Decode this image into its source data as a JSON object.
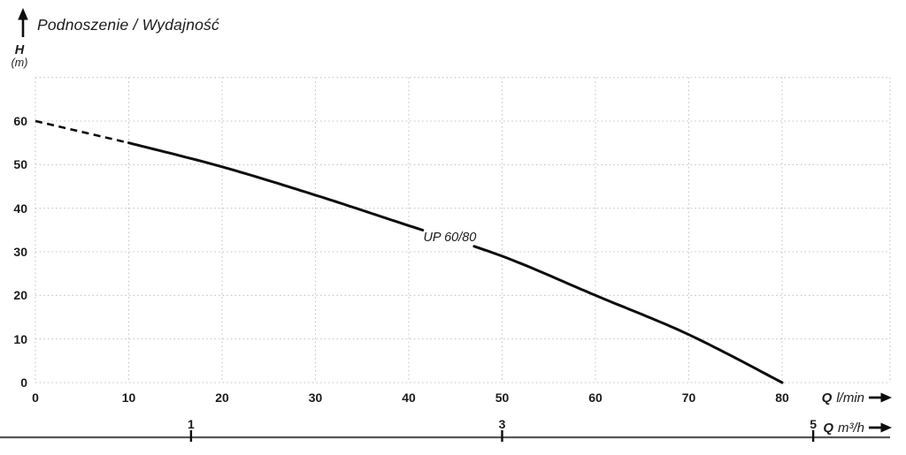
{
  "colors": {
    "text": "#1b1b1b",
    "grid": "#c6c6c6",
    "curve": "#0d0d0d",
    "secondary_axis": "#57575a"
  },
  "chart_data": {
    "type": "line",
    "title": "Podnoszenie / Wydajność",
    "ylabel": "H",
    "ylabel_unit": "(m)",
    "ylim": [
      0,
      70
    ],
    "y_ticks": [
      0,
      10,
      20,
      30,
      40,
      50,
      60
    ],
    "x_primary": {
      "label": "Q",
      "unit": "l/min",
      "ticks": [
        0,
        10,
        20,
        30,
        40,
        50,
        60,
        70,
        80
      ]
    },
    "x_secondary": {
      "label": "Q",
      "unit": "m³/h",
      "ticks": [
        {
          "label": "1",
          "q_lmin": 16.67
        },
        {
          "label": "3",
          "q_lmin": 50
        },
        {
          "label": "5",
          "q_lmin": 83.33
        }
      ]
    },
    "grid": true,
    "series": [
      {
        "name": "UP 60/80",
        "dashed_points": [
          [
            0,
            60
          ],
          [
            10,
            55
          ]
        ],
        "points": [
          [
            10,
            55
          ],
          [
            20,
            49.5
          ],
          [
            30,
            43
          ],
          [
            40,
            36
          ],
          [
            50,
            29
          ],
          [
            60,
            20
          ],
          [
            70,
            11
          ],
          [
            80,
            0
          ]
        ],
        "label_gap_q": [
          41.6,
          47.0
        ],
        "label_pos": {
          "q": 44.4,
          "h": 33.2
        }
      }
    ]
  }
}
